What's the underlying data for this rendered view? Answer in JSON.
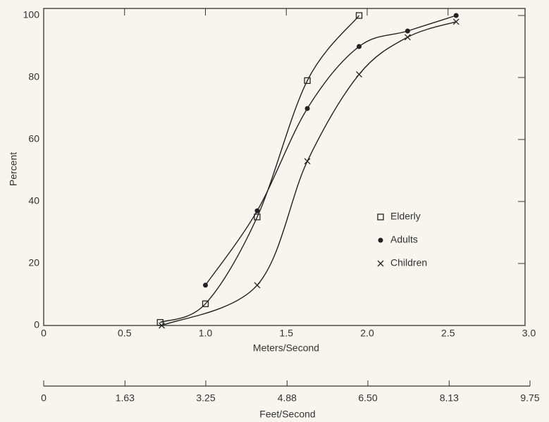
{
  "chart_data": {
    "type": "scatter",
    "xlabel": "Meters/Second",
    "ylabel": "Percent",
    "x2label": "Feet/Second",
    "xlim": [
      0,
      3
    ],
    "xticks": [
      0,
      0.5,
      {
        "value": 1,
        "label": "1.0"
      },
      1.5,
      {
        "value": 2,
        "label": "2.0"
      },
      2.5,
      {
        "value": 3,
        "label": "3.0"
      }
    ],
    "ylim": [
      0,
      100
    ],
    "yticks": [
      0,
      20,
      40,
      60,
      80,
      100
    ],
    "x2lim": [
      0,
      9.75
    ],
    "x2ticks": [
      0,
      1.63,
      3.25,
      4.88,
      {
        "value": 6.5,
        "label": "6.50"
      },
      8.13,
      9.75
    ],
    "legend": "center-right",
    "curves": true,
    "series": [
      {
        "name": "Elderly",
        "color": "#222222",
        "marker": "square",
        "x": [
          0.72,
          1.0,
          1.32,
          1.63,
          1.95
        ],
        "values": [
          1,
          7,
          35,
          79,
          100
        ]
      },
      {
        "name": "Adults",
        "color": "#222222",
        "marker": "circle",
        "x": [
          1.0,
          1.32,
          1.63,
          1.95,
          2.25,
          2.55
        ],
        "values": [
          13,
          37,
          70,
          90,
          95,
          100
        ]
      },
      {
        "name": "Children",
        "color": "#222222",
        "marker": "x",
        "x": [
          0.73,
          1.32,
          1.63,
          1.95,
          2.25,
          2.55
        ],
        "values": [
          0,
          13,
          53,
          81,
          93,
          98
        ]
      }
    ]
  }
}
